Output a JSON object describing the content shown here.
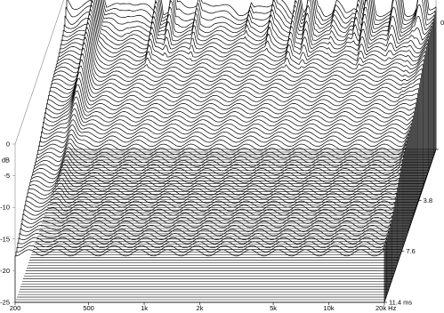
{
  "chart_data": {
    "type": "area",
    "subtype": "cumulative-spectral-decay-waterfall",
    "title": "",
    "colors": {
      "background": "#ffffff",
      "trace_line": "#000000",
      "slice_fill": "#ffffff",
      "floor_lines": "#000000"
    },
    "frequency_axis": {
      "scale": "log",
      "range": [
        200,
        20000
      ],
      "unit_label": "Hz",
      "ticks": [
        {
          "value": 200,
          "label": "200"
        },
        {
          "value": 500,
          "label": "500"
        },
        {
          "value": 1000,
          "label": "1k"
        },
        {
          "value": 2000,
          "label": "2k"
        },
        {
          "value": 5000,
          "label": "5k"
        },
        {
          "value": 10000,
          "label": "10k"
        },
        {
          "value": 20000,
          "label": "20k Hz"
        }
      ]
    },
    "level_axis": {
      "unit_label": "dB",
      "range": [
        -25,
        0
      ],
      "ticks": [
        {
          "value": 0,
          "label": "0"
        },
        {
          "value": -5,
          "label": "-5"
        },
        {
          "value": -10,
          "label": "-10"
        },
        {
          "value": -15,
          "label": "-15"
        },
        {
          "value": -20,
          "label": "-20"
        },
        {
          "value": -25,
          "label": "-25"
        }
      ]
    },
    "time_axis": {
      "unit_label": "ms",
      "range": [
        0,
        11.4
      ],
      "ticks": [
        {
          "value": 0,
          "label": "0."
        },
        {
          "value": 3.8,
          "label": "3.8"
        },
        {
          "value": 7.6,
          "label": "7.6"
        },
        {
          "value": 11.4,
          "label": "11.4 ms"
        }
      ]
    },
    "slice_count": 60,
    "decay": {
      "initial_level_db": -1.5,
      "floor_db": -25,
      "rate_db_per_ms_by_freq": [
        {
          "freq": 200,
          "rate": 4.5
        },
        {
          "freq": 320,
          "rate": 1.3
        },
        {
          "freq": 400,
          "rate": 2.8
        },
        {
          "freq": 800,
          "rate": 3.6
        },
        {
          "freq": 1500,
          "rate": 3.3
        },
        {
          "freq": 3000,
          "rate": 2.4
        },
        {
          "freq": 6000,
          "rate": 1.9
        },
        {
          "freq": 12000,
          "rate": 1.5
        },
        {
          "freq": 20000,
          "rate": 1.3
        }
      ],
      "resonances": [
        {
          "freq": 300,
          "ms": 5.8,
          "db": -3.5
        },
        {
          "freq": 630,
          "ms": 3.2,
          "db": -7
        },
        {
          "freq": 760,
          "ms": 2.6,
          "db": -7.5
        },
        {
          "freq": 1050,
          "ms": 3.8,
          "db": -9
        },
        {
          "freq": 2000,
          "ms": 3.5,
          "db": -10
        },
        {
          "freq": 2700,
          "ms": 2.8,
          "db": -8
        },
        {
          "freq": 3600,
          "ms": 3.2,
          "db": -7
        },
        {
          "freq": 4300,
          "ms": 2.5,
          "db": -6
        },
        {
          "freq": 7800,
          "ms": 2.2,
          "db": -8
        },
        {
          "freq": 8800,
          "ms": 2.6,
          "db": -6
        },
        {
          "freq": 12500,
          "ms": 1.8,
          "db": -5
        },
        {
          "freq": 17000,
          "ms": 1.2,
          "db": -5
        }
      ]
    },
    "ripple_profile": [
      {
        "freq": 200,
        "db": -1.5
      },
      {
        "freq": 215,
        "db": -2.5
      },
      {
        "freq": 240,
        "db": -2.2
      },
      {
        "freq": 290,
        "db": -1.8
      },
      {
        "freq": 390,
        "db": -2.5
      },
      {
        "freq": 440,
        "db": -1.5
      },
      {
        "freq": 520,
        "db": -2.4
      },
      {
        "freq": 700,
        "db": -3.8
      },
      {
        "freq": 820,
        "db": -1.6
      },
      {
        "freq": 1000,
        "db": -2.6
      },
      {
        "freq": 1300,
        "db": -1.8
      },
      {
        "freq": 1700,
        "db": -3.5
      },
      {
        "freq": 2200,
        "db": -2.8
      },
      {
        "freq": 2800,
        "db": -1.2
      },
      {
        "freq": 3500,
        "db": -4.5
      },
      {
        "freq": 4200,
        "db": -2.2
      },
      {
        "freq": 4700,
        "db": -2.4
      },
      {
        "freq": 5300,
        "db": -4.8
      },
      {
        "freq": 5800,
        "db": -1.8
      },
      {
        "freq": 6500,
        "db": -3.5
      },
      {
        "freq": 7200,
        "db": -2.2
      },
      {
        "freq": 8200,
        "db": -4.2
      },
      {
        "freq": 9000,
        "db": -2.8
      },
      {
        "freq": 10500,
        "db": -4.5
      },
      {
        "freq": 12000,
        "db": -2.8
      },
      {
        "freq": 14000,
        "db": -4.8
      },
      {
        "freq": 16000,
        "db": -2.5
      },
      {
        "freq": 17500,
        "db": -3.6
      },
      {
        "freq": 20000,
        "db": -2
      }
    ]
  }
}
